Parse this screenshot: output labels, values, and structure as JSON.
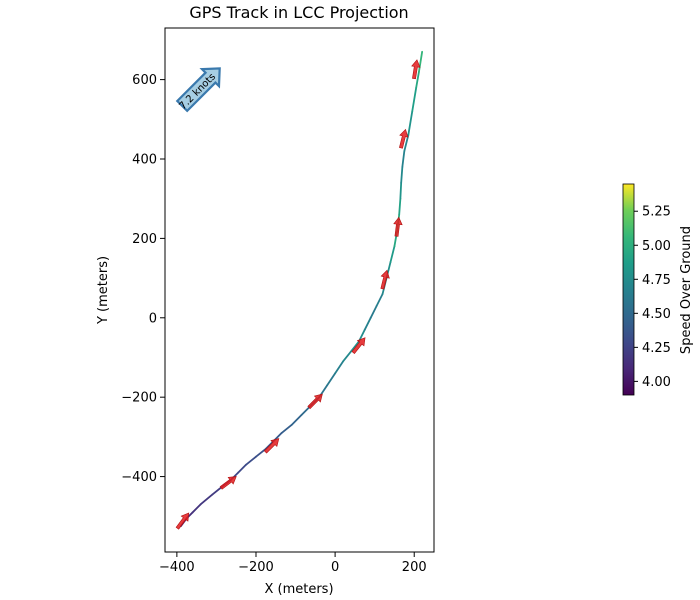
{
  "chart_data": {
    "type": "line",
    "title": "GPS Track in LCC Projection",
    "xlabel": "X (meters)",
    "ylabel": "Y (meters)",
    "xlim": [
      -430,
      250
    ],
    "ylim": [
      -590,
      730
    ],
    "xticks": [
      -400,
      -200,
      0,
      200
    ],
    "yticks": [
      -400,
      -200,
      0,
      200,
      400,
      600
    ],
    "xtick_labels": [
      "−400",
      "−200",
      "0",
      "200"
    ],
    "ytick_labels": [
      "−400",
      "−200",
      "0",
      "200",
      "400",
      "600"
    ],
    "grid": false,
    "series": [
      {
        "x": [
          -390,
          -375,
          -360,
          -340,
          -310,
          -285,
          -265,
          -245,
          -225,
          -200,
          -175,
          -155,
          -135,
          -110,
          -85,
          -60,
          -40,
          -20,
          0,
          20,
          40,
          60,
          75,
          90,
          105,
          120,
          130,
          140,
          150,
          157,
          162,
          165,
          167,
          170,
          175,
          185,
          195,
          205,
          212,
          220
        ],
        "y": [
          -525,
          -505,
          -490,
          -470,
          -445,
          -425,
          -410,
          -390,
          -370,
          -350,
          -330,
          -310,
          -290,
          -270,
          -245,
          -220,
          -200,
          -170,
          -140,
          -110,
          -85,
          -60,
          -30,
          0,
          30,
          60,
          100,
          140,
          180,
          220,
          260,
          300,
          340,
          380,
          420,
          460,
          520,
          580,
          620,
          670
        ],
        "speed": [
          4.1,
          4.12,
          4.15,
          4.18,
          4.2,
          4.22,
          4.25,
          4.28,
          4.3,
          4.32,
          4.35,
          4.38,
          4.4,
          4.45,
          4.48,
          4.52,
          4.55,
          4.6,
          4.62,
          4.7,
          4.75,
          4.8,
          4.7,
          4.65,
          4.6,
          4.7,
          4.75,
          4.8,
          4.9,
          5.0,
          4.95,
          4.85,
          4.75,
          4.7,
          4.65,
          4.75,
          4.85,
          4.9,
          5.0,
          5.1
        ]
      }
    ],
    "heading_arrows": [
      {
        "x": -385,
        "y": -512
      },
      {
        "x": -270,
        "y": -415
      },
      {
        "x": -160,
        "y": -322
      },
      {
        "x": -50,
        "y": -210
      },
      {
        "x": 60,
        "y": -70
      },
      {
        "x": 125,
        "y": 95
      },
      {
        "x": 158,
        "y": 228
      },
      {
        "x": 172,
        "y": 450
      },
      {
        "x": 203,
        "y": 625
      }
    ],
    "wind": {
      "label": "7.2 knots",
      "direction_deg": 45,
      "x": -340,
      "y": 580
    },
    "colorbar": {
      "label": "Speed Over Ground",
      "range": [
        3.9,
        5.45
      ],
      "ticks": [
        4.0,
        4.25,
        4.5,
        4.75,
        5.0,
        5.25
      ],
      "tick_labels": [
        "4.00",
        "4.25",
        "4.50",
        "4.75",
        "5.00",
        "5.25"
      ],
      "colormap": "viridis"
    },
    "colors": {
      "arrow": "#e31a1c",
      "wind_fill": "#a6cee3",
      "wind_edge": "#3a79ad"
    }
  }
}
